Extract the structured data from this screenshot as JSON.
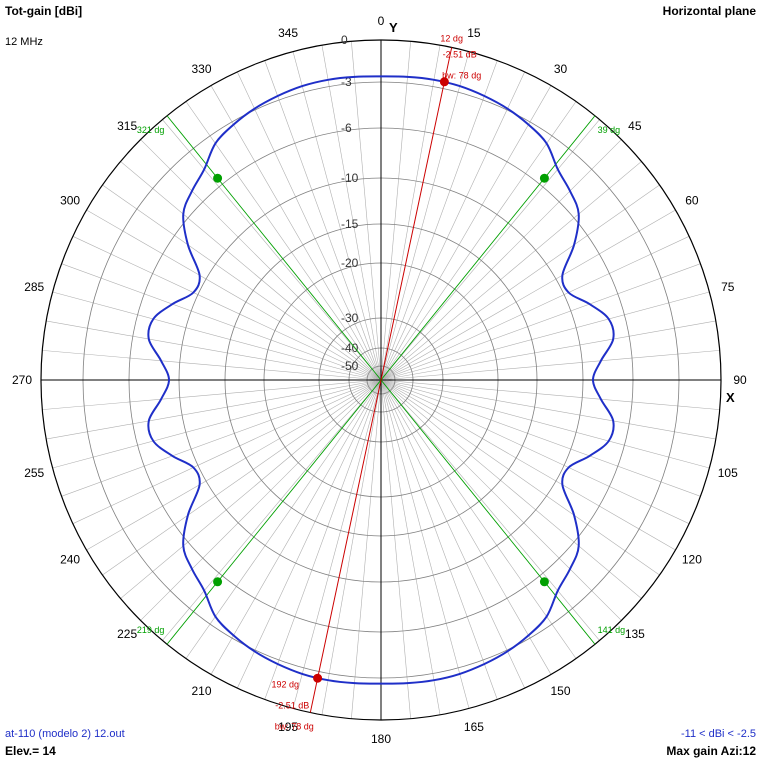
{
  "header": {
    "left_title": "Tot-gain [dBi]",
    "frequency": "12 MHz",
    "right_title": "Horizontal plane"
  },
  "footer": {
    "file": "at-110 (modelo 2) 12.out",
    "elevation": "Elev.= 14",
    "range": "-11 < dBi < -2.5",
    "max_gain": "Max gain Azi:12"
  },
  "colors": {
    "pattern": "#1f2fc8",
    "main_lobe": "#cc0000",
    "beamwidth_lines": "#00a000",
    "grid": "#808080",
    "axes": "#000000"
  },
  "chart_data": {
    "type": "polar",
    "plane": "horizontal",
    "axis_labels": {
      "y": "Y",
      "x": "X"
    },
    "angle_labels": [
      "0",
      "15",
      "30",
      "45",
      "60",
      "75",
      "90",
      "105",
      "120",
      "135",
      "150",
      "165",
      "180",
      "195",
      "210",
      "225",
      "240",
      "255",
      "270",
      "285",
      "300",
      "315",
      "330",
      "345"
    ],
    "radial_ticks": [
      {
        "db": 0,
        "label": "0"
      },
      {
        "db": -3,
        "label": "-3"
      },
      {
        "db": -6,
        "label": "-6"
      },
      {
        "db": -10,
        "label": "-10"
      },
      {
        "db": -15,
        "label": "-15"
      },
      {
        "db": -20,
        "label": "-20"
      },
      {
        "db": -30,
        "label": "-30"
      },
      {
        "db": -40,
        "label": "-40"
      },
      {
        "db": -50,
        "label": "-50"
      }
    ],
    "pattern": {
      "azimuth_deg": [
        0,
        5,
        10,
        15,
        20,
        25,
        30,
        35,
        40,
        45,
        50,
        55,
        60,
        65,
        70,
        75,
        80,
        85,
        90,
        95,
        100,
        105,
        110,
        115,
        120,
        125,
        130,
        135,
        140,
        145,
        150,
        155,
        160,
        165,
        170,
        175,
        180,
        185,
        190,
        195,
        200,
        205,
        210,
        215,
        220,
        225,
        230,
        235,
        240,
        245,
        250,
        255,
        260,
        265,
        270,
        275,
        280,
        285,
        290,
        295,
        300,
        305,
        310,
        315,
        320,
        325,
        330,
        335,
        340,
        345,
        350,
        355
      ],
      "gain_dbi": [
        -2.6,
        -2.55,
        -2.51,
        -2.55,
        -2.7,
        -2.9,
        -3.2,
        -3.6,
        -4.5,
        -5.0,
        -5.6,
        -7.3,
        -9.4,
        -9.6,
        -8.4,
        -7.3,
        -7.3,
        -8.5,
        -9.2,
        -8.5,
        -7.3,
        -7.3,
        -8.4,
        -9.6,
        -9.4,
        -7.3,
        -5.6,
        -5.0,
        -4.5,
        -3.6,
        -3.2,
        -2.9,
        -2.7,
        -2.55,
        -2.51,
        -2.55,
        -2.6,
        -2.55,
        -2.51,
        -2.55,
        -2.7,
        -2.9,
        -3.2,
        -3.6,
        -4.5,
        -5.0,
        -5.6,
        -7.3,
        -9.4,
        -9.6,
        -8.4,
        -7.3,
        -7.3,
        -8.5,
        -9.2,
        -8.5,
        -7.3,
        -7.3,
        -8.4,
        -9.6,
        -9.4,
        -7.3,
        -5.6,
        -5.0,
        -4.5,
        -3.6,
        -3.2,
        -2.9,
        -2.7,
        -2.55,
        -2.51,
        -2.55
      ]
    },
    "main_lobe": [
      {
        "azimuth_deg": 12,
        "gain_dbi": -2.51,
        "angle_label": "12 dg",
        "gain_label": "-2.51 dB",
        "bw_label": "bw: 78 dg"
      },
      {
        "azimuth_deg": 192,
        "gain_dbi": -2.51,
        "angle_label": "192 dg",
        "gain_label": "-2.51 dB",
        "bw_label": "bw: 78 dg"
      }
    ],
    "beamwidth_markers": [
      {
        "azimuth_deg": 39,
        "gain_dbi": -5.5,
        "label": "39 dg"
      },
      {
        "azimuth_deg": 321,
        "gain_dbi": -5.5,
        "label": "321 dg"
      },
      {
        "azimuth_deg": 141,
        "gain_dbi": -5.5,
        "label": "141 dg"
      },
      {
        "azimuth_deg": 219,
        "gain_dbi": -5.5,
        "label": "219 dg"
      }
    ]
  }
}
